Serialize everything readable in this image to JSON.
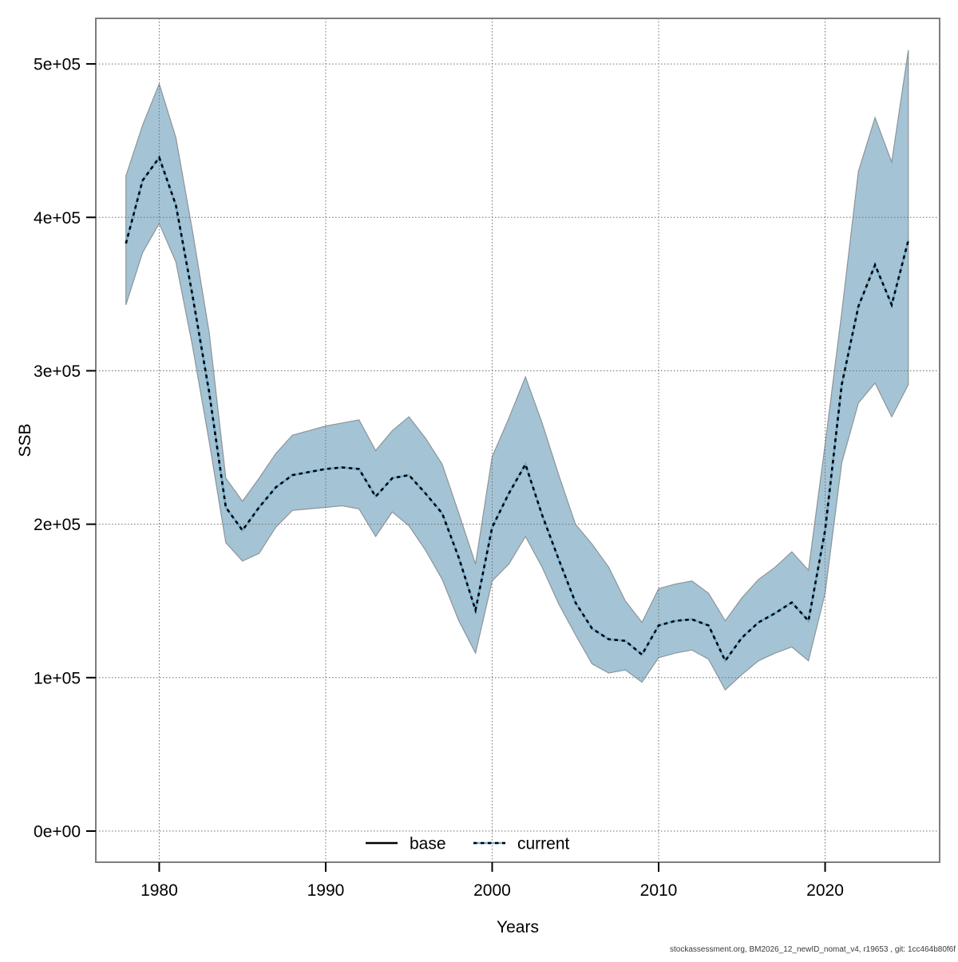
{
  "footer": {
    "text": "stockassessment.org, BM2026_12_newID_nomat_v4, r19653 , git: 1cc464b80f6f"
  },
  "legend": {
    "items": [
      {
        "label": "base",
        "style": "solid-black"
      },
      {
        "label": "current",
        "style": "dotted-blue-over-black"
      }
    ]
  },
  "colors": {
    "ribbon_fill": "#a4c4d5",
    "ribbon_edge": "#8c9499",
    "current_blue": "#74b0d4",
    "base_black": "#000000",
    "grid": "#6e6e6e",
    "frame": "#7e7e7e",
    "tick": "#000000"
  },
  "chart_data": {
    "type": "line",
    "title": "",
    "xlabel": "Years",
    "ylabel": "SSB",
    "grid": true,
    "legend_position": "bottom-center-inside",
    "xlim": [
      1976.19,
      2026.88
    ],
    "ylim": [
      -20300,
      529700
    ],
    "x_ticks": [
      1980,
      1990,
      2000,
      2010,
      2020
    ],
    "x_tick_labels": [
      "1980",
      "1990",
      "2000",
      "2010",
      "2020"
    ],
    "y_ticks": [
      0,
      100000,
      200000,
      300000,
      400000,
      500000
    ],
    "y_tick_labels": [
      "0e+00",
      "1e+05",
      "2e+05",
      "3e+05",
      "4e+05",
      "5e+05"
    ],
    "x": [
      1978,
      1979,
      1980,
      1981,
      1982,
      1983,
      1984,
      1985,
      1986,
      1987,
      1988,
      1989,
      1990,
      1991,
      1992,
      1993,
      1994,
      1995,
      1996,
      1997,
      1998,
      1999,
      2000,
      2001,
      2002,
      2003,
      2004,
      2005,
      2006,
      2007,
      2008,
      2009,
      2010,
      2011,
      2012,
      2013,
      2014,
      2015,
      2016,
      2017,
      2018,
      2019,
      2020,
      2021,
      2022,
      2023,
      2024,
      2025
    ],
    "series": [
      {
        "name": "base",
        "style": "solid-black",
        "values": [
          383000,
          424000,
          439000,
          408000,
          349000,
          286000,
          211000,
          196000,
          211000,
          224000,
          232000,
          234000,
          236000,
          237000,
          236000,
          218000,
          230000,
          232000,
          220000,
          207000,
          178000,
          144000,
          198000,
          220000,
          239000,
          206000,
          177000,
          149000,
          132000,
          125000,
          124000,
          115000,
          134000,
          137000,
          138000,
          134000,
          111000,
          126000,
          136000,
          142000,
          149000,
          137000,
          196000,
          291000,
          342000,
          369000,
          343000,
          385000
        ]
      },
      {
        "name": "current",
        "style": "dotted-blue-over-black",
        "values": [
          383000,
          424000,
          439000,
          408000,
          349000,
          286000,
          211000,
          196000,
          211000,
          224000,
          232000,
          234000,
          236000,
          237000,
          236000,
          218000,
          230000,
          232000,
          220000,
          207000,
          178000,
          144000,
          198000,
          220000,
          239000,
          206000,
          177000,
          149000,
          132000,
          125000,
          124000,
          115000,
          134000,
          137000,
          138000,
          134000,
          111000,
          126000,
          136000,
          142000,
          149000,
          137000,
          196000,
          291000,
          342000,
          369000,
          343000,
          385000
        ]
      }
    ],
    "ribbon": {
      "name": "current-confidence-interval",
      "lower": [
        343000,
        377000,
        396000,
        371000,
        316000,
        254000,
        188000,
        176000,
        181000,
        198000,
        209000,
        210000,
        211000,
        212000,
        210000,
        192000,
        208000,
        199000,
        183000,
        164000,
        137000,
        116000,
        163000,
        174000,
        192000,
        172000,
        148000,
        128000,
        109000,
        103000,
        105000,
        97000,
        113000,
        116000,
        118000,
        112000,
        92000,
        102000,
        111000,
        116000,
        120000,
        111000,
        155000,
        240000,
        279000,
        292000,
        270000,
        291000
      ],
      "upper": [
        427000,
        460000,
        487000,
        452000,
        391000,
        325000,
        230000,
        215000,
        230000,
        246000,
        258000,
        261000,
        264000,
        266000,
        268000,
        248000,
        261000,
        270000,
        256000,
        239000,
        207000,
        174000,
        244000,
        269000,
        296000,
        266000,
        232000,
        200000,
        187000,
        172000,
        150000,
        136000,
        158000,
        161000,
        163000,
        155000,
        137000,
        152000,
        164000,
        172000,
        182000,
        170000,
        252000,
        338000,
        430000,
        465000,
        436000,
        509000
      ]
    }
  }
}
